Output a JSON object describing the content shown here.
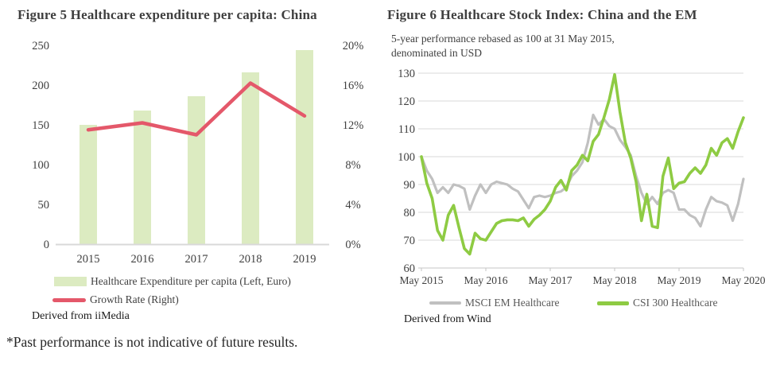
{
  "figure5": {
    "source": "Derived from iiMedia"
  },
  "figure6": {
    "subtitle_line1": "5-year performance rebased as 100 at 31 May 2015,",
    "subtitle_line2": "denominated in USD",
    "source": "Derived from Wind"
  },
  "footnote": "*Past performance is not indicative of future results.",
  "colors": {
    "bar_fill": "#dcebc1",
    "growth_line": "#e4586a",
    "msci_line": "#c0c0c0",
    "csi_line": "#8ecb43",
    "gridline": "#d9d9d9",
    "axis_light": "#d9d9d9",
    "axis_mid": "#c6c6c6",
    "tick_text": "#404040"
  },
  "chart_data": [
    {
      "type": "bar",
      "title": "Figure 5 Healthcare expenditure per capita: China",
      "categories": [
        "2015",
        "2016",
        "2017",
        "2018",
        "2019"
      ],
      "series": [
        {
          "name": "Healthcare Expenditure per capita (Left, Euro)",
          "type": "bar",
          "axis": "left",
          "values": [
            150,
            168,
            186,
            216,
            244
          ]
        },
        {
          "name": "Growth Rate (Right)",
          "type": "line",
          "axis": "right",
          "unit": "%",
          "values": [
            11.5,
            12.2,
            11.0,
            16.2,
            12.9
          ]
        }
      ],
      "left_axis": {
        "ticks": [
          0,
          50,
          100,
          150,
          200,
          250
        ],
        "range": [
          0,
          250
        ]
      },
      "right_axis": {
        "ticks": [
          0,
          4,
          8,
          12,
          16,
          20
        ],
        "range": [
          0,
          20
        ],
        "format": "percent"
      },
      "grid": false,
      "legend_position": "bottom"
    },
    {
      "type": "line",
      "title": "Figure 6 Healthcare Stock Index: China and the EM",
      "subtitle": "5-year performance rebased as 100 at 31 May 2015, denominated in USD",
      "x_unit": "month",
      "x_range": [
        "May 2015",
        "May 2020"
      ],
      "x_tick_labels": [
        "May 2015",
        "May 2016",
        "May 2017",
        "May 2018",
        "May 2019",
        "May 2020"
      ],
      "y_axis": {
        "ticks": [
          60,
          70,
          80,
          90,
          100,
          110,
          120,
          130
        ],
        "range": [
          60,
          130
        ]
      },
      "grid": true,
      "legend_position": "bottom",
      "series": [
        {
          "name": "MSCI EM Healthcare",
          "color": "#c0c0c0",
          "values": [
            100,
            95,
            92,
            87,
            89,
            87,
            90,
            89.5,
            88.5,
            81,
            86,
            90,
            87,
            90,
            91,
            90.5,
            90,
            88.5,
            87.5,
            84.5,
            81.5,
            85.5,
            86,
            85.5,
            86,
            87,
            87.5,
            89,
            93,
            95,
            98,
            105,
            115,
            111.5,
            113.5,
            111,
            110,
            106,
            103.5,
            100.5,
            93,
            87,
            83,
            85.5,
            83,
            87,
            88,
            87,
            81,
            81,
            79,
            78,
            75,
            81,
            85.5,
            84,
            83.5,
            82.5,
            77,
            83,
            92
          ]
        },
        {
          "name": "CSI 300 Healthcare",
          "color": "#8ecb43",
          "values": [
            100,
            90.5,
            85,
            73.5,
            70,
            79,
            82.5,
            74.5,
            67,
            65,
            72.5,
            70.5,
            70,
            73,
            76,
            77,
            77.3,
            77.3,
            77,
            78,
            75,
            77.5,
            79,
            81,
            84,
            89,
            91.5,
            88,
            95,
            97,
            100.5,
            98.5,
            105.5,
            108,
            114,
            120.5,
            129.5,
            116,
            105,
            99.5,
            91,
            77,
            86.5,
            75,
            74.5,
            93,
            99.5,
            88.5,
            90.5,
            91,
            94,
            96,
            94,
            97,
            103,
            100.5,
            105,
            106.5,
            103,
            109,
            114
          ]
        }
      ]
    }
  ]
}
